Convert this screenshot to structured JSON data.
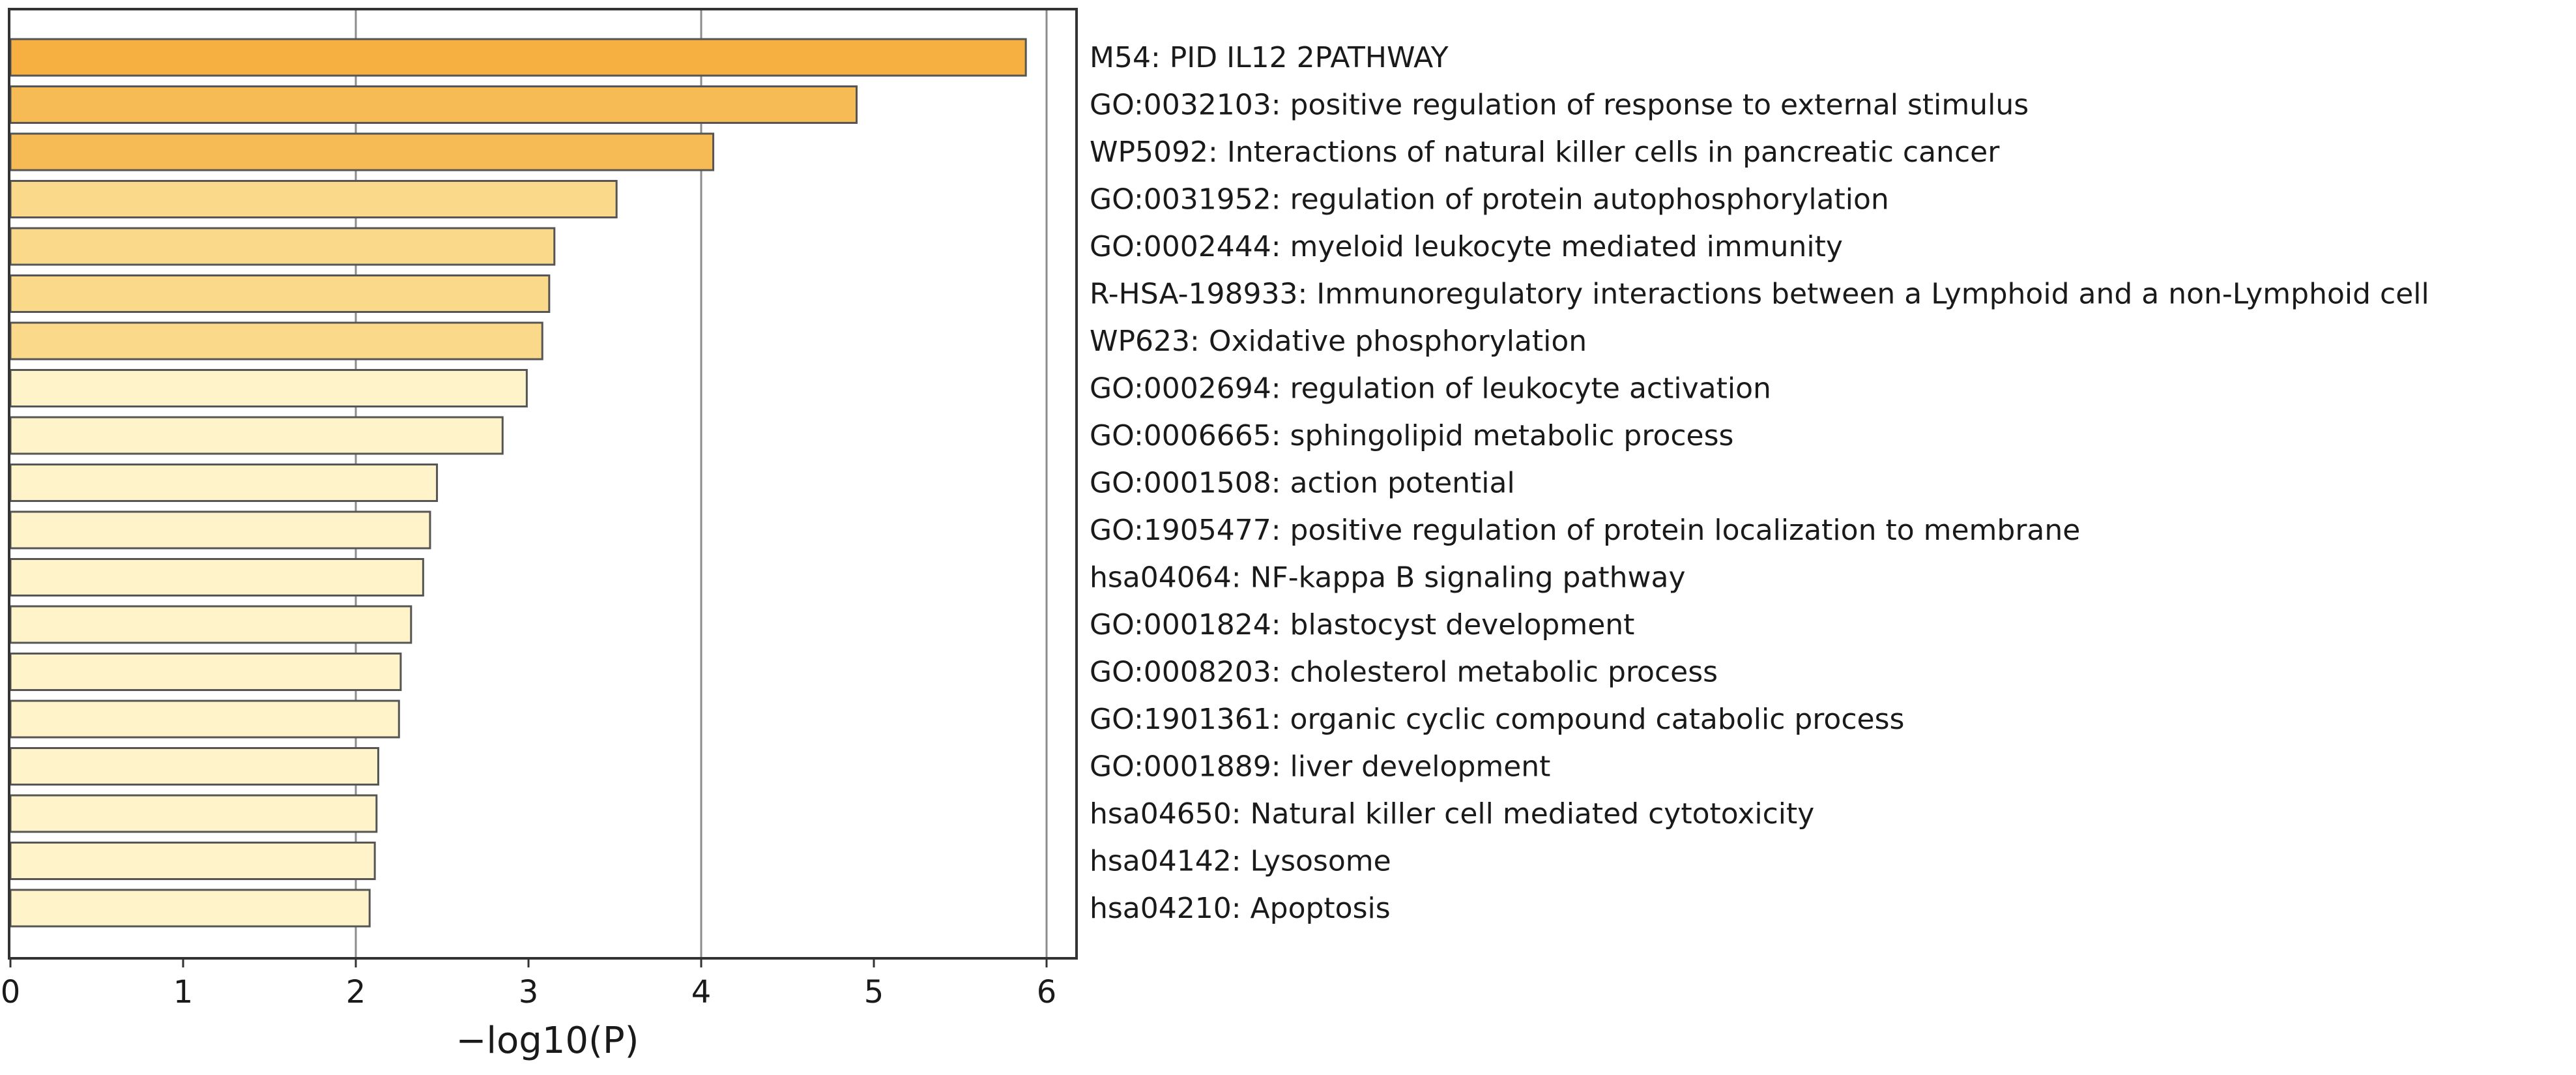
{
  "chart_data": {
    "type": "bar",
    "orientation": "horizontal",
    "title": "",
    "xlabel": "−log10(P)",
    "ylabel": "",
    "xlim": [
      0,
      6.2
    ],
    "xticks": [
      "0",
      "1",
      "2",
      "3",
      "4",
      "5",
      "6"
    ],
    "grid": "vertical lines at 2, 4, 6",
    "legend": "none",
    "categories": [
      "M54: PID IL12 2PATHWAY",
      "GO:0032103: positive regulation of response to external stimulus",
      "WP5092: Interactions of natural killer cells in pancreatic cancer",
      "GO:0031952: regulation of protein autophosphorylation",
      "GO:0002444: myeloid leukocyte mediated immunity",
      "R-HSA-198933: Immunoregulatory interactions between a Lymphoid and a non-Lymphoid cell",
      "WP623: Oxidative phosphorylation",
      "GO:0002694: regulation of leukocyte activation",
      "GO:0006665: sphingolipid metabolic process",
      "GO:0001508: action potential",
      "GO:1905477: positive regulation of protein localization to membrane",
      "hsa04064: NF-kappa B signaling pathway",
      "GO:0001824: blastocyst development",
      "GO:0008203: cholesterol metabolic process",
      "GO:1901361: organic cyclic compound catabolic process",
      "GO:0001889: liver development",
      "hsa04650: Natural killer cell mediated cytotoxicity",
      "hsa04142: Lysosome",
      "hsa04210: Apoptosis"
    ],
    "values": [
      5.88,
      4.9,
      4.07,
      3.51,
      3.15,
      3.12,
      3.08,
      2.99,
      2.85,
      2.47,
      2.43,
      2.39,
      2.32,
      2.26,
      2.25,
      2.13,
      2.12,
      2.11,
      2.08
    ],
    "colors": [
      "#f5b041",
      "#f6bb55",
      "#f6bb55",
      "#fbd98a",
      "#fbd98a",
      "#fbd98a",
      "#fbd98a",
      "#fff4c9",
      "#fff4c9",
      "#fff4c9",
      "#fff4c9",
      "#fff4c9",
      "#fff4c9",
      "#fff4c9",
      "#fff4c9",
      "#fff4c9",
      "#fff4c9",
      "#fff4c9",
      "#fff4c9"
    ],
    "bar_edge_color": "#555555",
    "grid_color": "#8c8c8c",
    "frame_color": "#333333"
  }
}
